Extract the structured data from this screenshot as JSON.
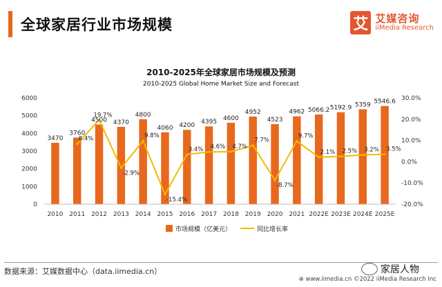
{
  "header": {
    "title": "全球家居行业市场规模",
    "logo_mark": "艾",
    "logo_cn": "艾媒咨询",
    "logo_en": "iiMedia Research"
  },
  "chart_data": {
    "type": "bar",
    "title": "2010-2025年全球家居市场规模及预测",
    "subtitle": "2010-2025 Global Home Market Size and Forecast",
    "categories": [
      "2010",
      "2011",
      "2012",
      "2013",
      "2014",
      "2015",
      "2016",
      "2017",
      "2018",
      "2019",
      "2020",
      "2021",
      "2022E",
      "2023E",
      "2024E",
      "2025E"
    ],
    "series": [
      {
        "name": "市场规模（亿美元）",
        "type": "bar",
        "axis": "left",
        "color": "#e8681d",
        "values": [
          3470,
          3760,
          4500,
          4370,
          4800,
          4060,
          4200,
          4395,
          4600,
          4952,
          4523,
          4962,
          5066.2,
          5192.9,
          5359,
          5546.6
        ],
        "labels": [
          "3470",
          "3760",
          "4500",
          "4370",
          "4800",
          "4060",
          "4200",
          "4395",
          "4600",
          "4952",
          "4523",
          "4962",
          "5066.2",
          "5192.9",
          "5359",
          "5546.6"
        ]
      },
      {
        "name": "同比增长率",
        "type": "line",
        "axis": "right",
        "color": "#f5b800",
        "values": [
          null,
          8.4,
          19.7,
          -2.9,
          9.8,
          -15.4,
          3.4,
          4.6,
          4.7,
          7.7,
          -8.7,
          9.7,
          2.1,
          2.5,
          3.2,
          3.5
        ],
        "labels": [
          "",
          "8.4%",
          "19.7%",
          "-2.9%",
          "9.8%",
          "-15.4%",
          "3.4%",
          "4.6%",
          "4.7%",
          "7.7%",
          "-8.7%",
          "9.7%",
          "2.1%",
          "2.5%",
          "3.2%",
          "3.5%"
        ]
      }
    ],
    "left_axis": {
      "min": 0,
      "max": 6000,
      "ticks": [
        "0",
        "1000",
        "2000",
        "3000",
        "4000",
        "5000",
        "6000"
      ]
    },
    "right_axis": {
      "min": -20,
      "max": 30,
      "ticks": [
        "-20.0%",
        "-10.0%",
        "0.0%",
        "10.0%",
        "20.0%",
        "30.0%"
      ]
    },
    "legend_position": "bottom",
    "grid": false
  },
  "footer": {
    "source": "数据来源：艾媒数据中心（data.iimedia.cn）",
    "url_copyright": "©2022  iiMedia Research  Inc",
    "url": "www.iimedia.cn",
    "watermark": "家居人物"
  }
}
